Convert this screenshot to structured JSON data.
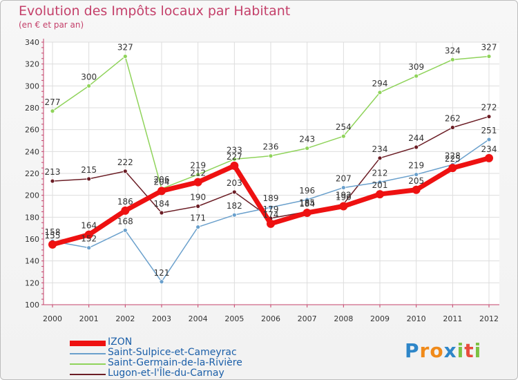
{
  "header": {
    "title": "Evolution des Impôts locaux par Habitant",
    "subtitle": "(en € et par an)"
  },
  "colors": {
    "title": "#c4406a",
    "axis": "#c4406a",
    "grid": "#dddddd",
    "label": "#333333",
    "legend_text": "#1a5ea8"
  },
  "chart_data": {
    "type": "line",
    "title": "Evolution des Impôts locaux par Habitant",
    "subtitle": "(en € et par an)",
    "xlabel": "",
    "ylabel": "",
    "ylim": [
      100,
      340
    ],
    "yticks": [
      100,
      120,
      140,
      160,
      180,
      200,
      220,
      240,
      260,
      280,
      300,
      320,
      340
    ],
    "categories": [
      "2000",
      "2001",
      "2002",
      "2003",
      "2004",
      "2005",
      "2006",
      "2007",
      "2008",
      "2009",
      "2010",
      "2011",
      "2012"
    ],
    "grid": true,
    "legend_position": "bottom-left",
    "series": [
      {
        "name": "Lugon-et-l'Île-du-Carnay",
        "color": "#6b1d25",
        "thick": false,
        "values": [
          213,
          215,
          222,
          184,
          190,
          203,
          179,
          185,
          192,
          234,
          244,
          262,
          272
        ]
      },
      {
        "name": "Saint-Germain-de-la-Rivière",
        "color": "#8fd35a",
        "thick": false,
        "values": [
          277,
          300,
          327,
          206,
          219,
          233,
          236,
          243,
          254,
          294,
          309,
          324,
          327
        ]
      },
      {
        "name": "Saint-Sulpice-et-Cameyrac",
        "color": "#6aa0cc",
        "thick": false,
        "values": [
          158,
          152,
          168,
          121,
          171,
          182,
          189,
          196,
          207,
          212,
          219,
          228,
          251
        ]
      },
      {
        "name": "IZON",
        "color": "#ee1111",
        "thick": true,
        "values": [
          155,
          164,
          186,
          204,
          212,
          227,
          174,
          184,
          190,
          201,
          205,
          225,
          234
        ]
      }
    ],
    "legend_order": [
      "IZON",
      "Saint-Sulpice-et-Cameyrac",
      "Saint-Germain-de-la-Rivière",
      "Lugon-et-l'Île-du-Carnay"
    ]
  },
  "logo": {
    "letters": [
      "P",
      "r",
      "o",
      "x",
      "i",
      "t",
      "i"
    ],
    "colors": [
      "#2e86c8",
      "#f08a1a",
      "#f08a1a",
      "#2e86c8",
      "#7cc142",
      "#e84c3d",
      "#7cc142"
    ]
  }
}
